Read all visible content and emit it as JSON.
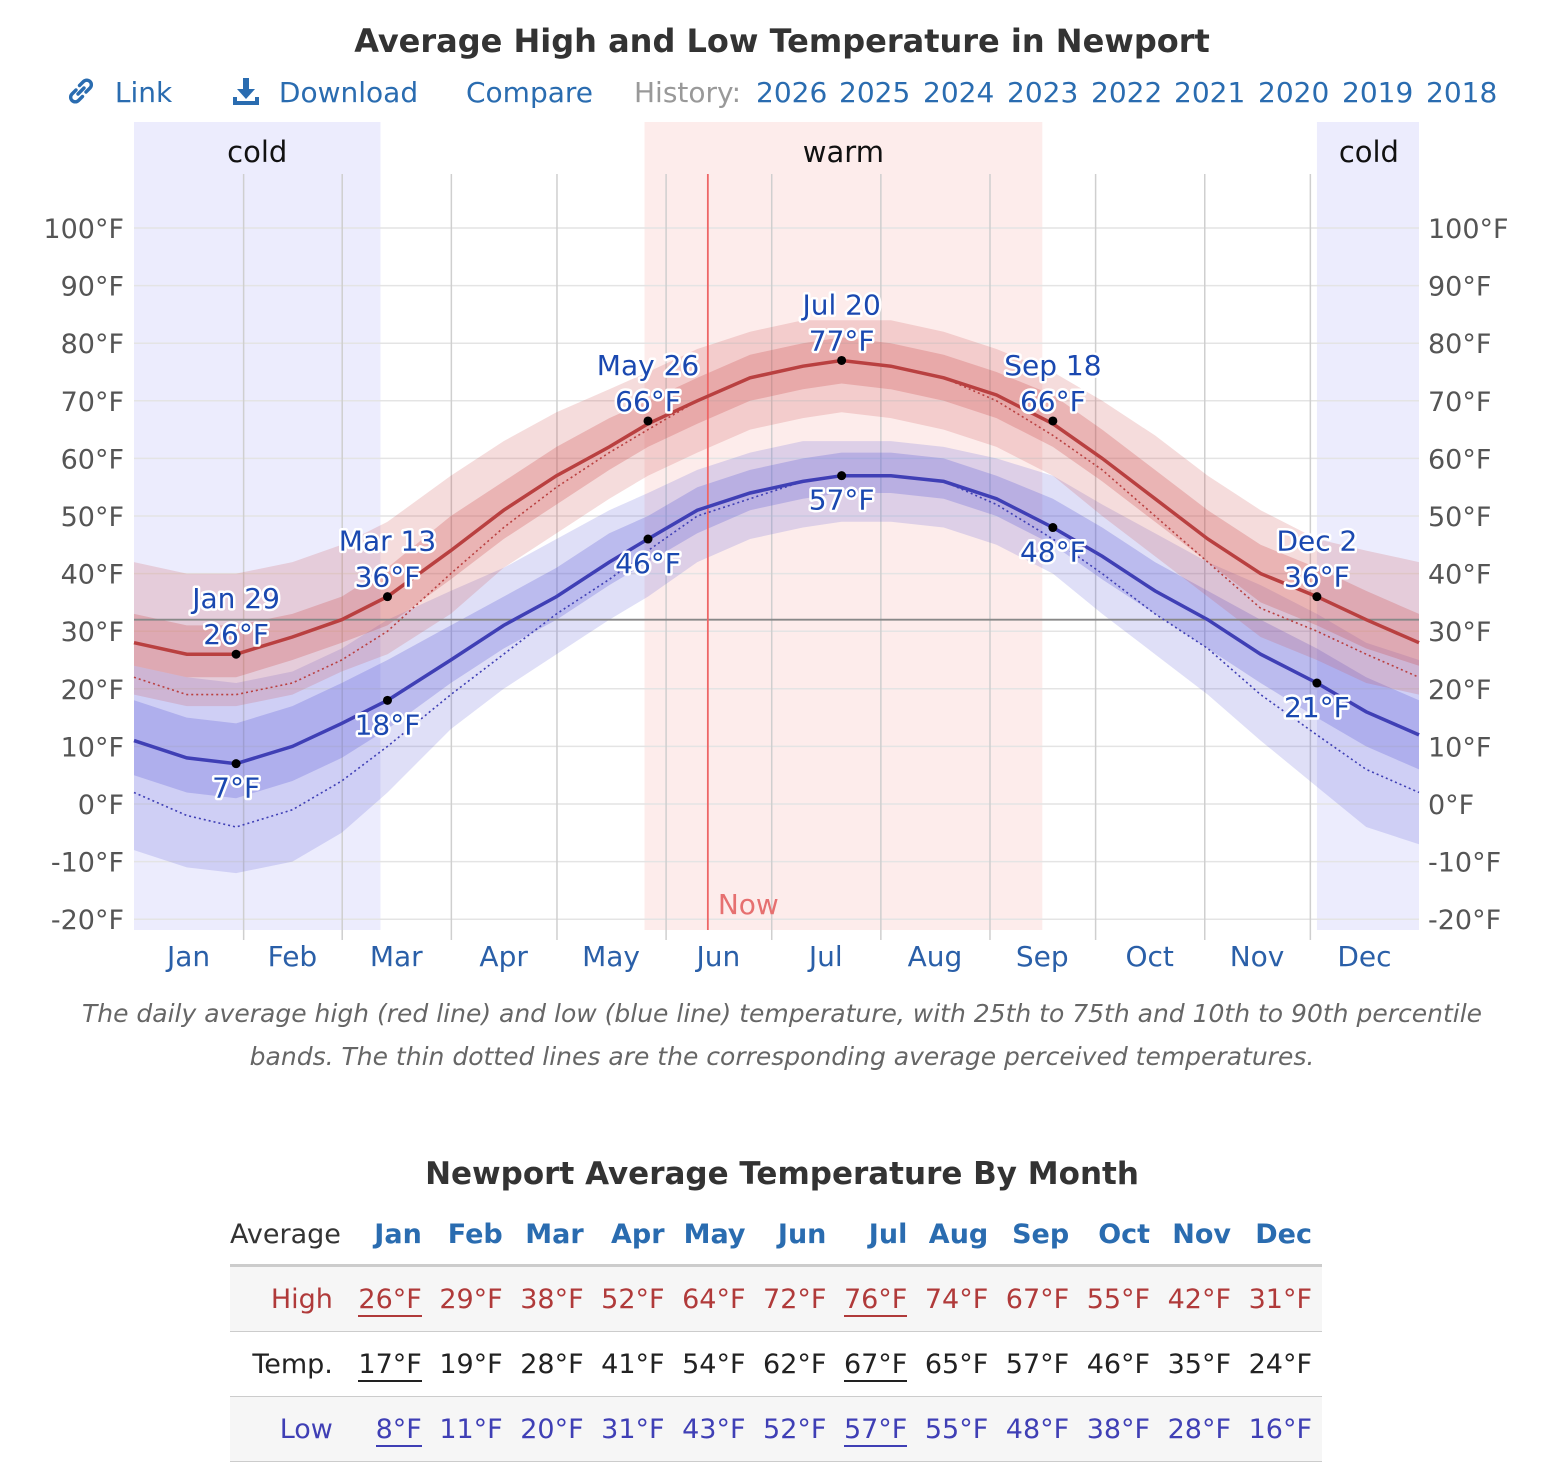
{
  "title": "Average High and Low Temperature in Newport",
  "toolbar": {
    "link_label": "Link",
    "download_label": "Download",
    "compare_label": "Compare",
    "history_label": "History:",
    "history_years": [
      "2026",
      "2025",
      "2024",
      "2023",
      "2022",
      "2021",
      "2020",
      "2019",
      "2018"
    ]
  },
  "chart_data": {
    "type": "line",
    "x_unit": "day of year",
    "months": [
      "Jan",
      "Feb",
      "Mar",
      "Apr",
      "May",
      "Jun",
      "Jul",
      "Aug",
      "Sep",
      "Oct",
      "Nov",
      "Dec"
    ],
    "yticks": [
      "100°F",
      "90°F",
      "80°F",
      "70°F",
      "60°F",
      "50°F",
      "40°F",
      "30°F",
      "20°F",
      "10°F",
      "0°F",
      "-10°F",
      "-20°F"
    ],
    "ylim": [
      -20,
      100
    ],
    "freezing_line": 32,
    "seasons": [
      {
        "label": "cold",
        "start_day": 0,
        "end_day": 70
      },
      {
        "label": "warm",
        "start_day": 145,
        "end_day": 258
      },
      {
        "label": "cold",
        "start_day": 336,
        "end_day": 365
      }
    ],
    "now": {
      "label": "Now",
      "day": 163
    },
    "series": [
      {
        "role": "high",
        "color": "#b94040",
        "x": [
          0,
          15,
          29,
          45,
          59,
          72,
          90,
          105,
          120,
          135,
          146,
          160,
          175,
          190,
          201,
          215,
          230,
          245,
          261,
          275,
          290,
          305,
          320,
          336,
          350,
          365
        ],
        "values": [
          28,
          26,
          26,
          29,
          32,
          36,
          44,
          51,
          57,
          62,
          66,
          70,
          74,
          76,
          77,
          76,
          74,
          71,
          66,
          60,
          53,
          46,
          40,
          36,
          32,
          28
        ],
        "p25": [
          24,
          22,
          22,
          25,
          28,
          31,
          39,
          46,
          52,
          58,
          62,
          66,
          70,
          72,
          73,
          72,
          70,
          67,
          62,
          56,
          49,
          42,
          35,
          31,
          27,
          24
        ],
        "p75": [
          33,
          31,
          31,
          33,
          36,
          41,
          50,
          56,
          62,
          67,
          70,
          74,
          78,
          80,
          81,
          80,
          78,
          75,
          71,
          65,
          58,
          51,
          45,
          41,
          37,
          33
        ],
        "p10": [
          19,
          17,
          17,
          19,
          23,
          26,
          33,
          41,
          47,
          53,
          57,
          61,
          65,
          67,
          68,
          67,
          65,
          62,
          57,
          50,
          43,
          36,
          29,
          25,
          21,
          19
        ],
        "p90": [
          42,
          40,
          40,
          42,
          45,
          49,
          57,
          63,
          68,
          72,
          75,
          79,
          82,
          84,
          84,
          84,
          82,
          79,
          75,
          70,
          64,
          57,
          51,
          46,
          44,
          42
        ],
        "perceived": [
          22,
          19,
          19,
          21,
          25,
          30,
          40,
          48,
          55,
          61,
          65,
          70,
          74,
          76,
          77,
          76,
          74,
          70,
          64,
          58,
          50,
          42,
          34,
          30,
          26,
          22
        ]
      },
      {
        "role": "low",
        "color": "#3f3fb5",
        "x": [
          0,
          15,
          29,
          45,
          59,
          72,
          90,
          105,
          120,
          135,
          146,
          160,
          175,
          190,
          201,
          215,
          230,
          245,
          261,
          275,
          290,
          305,
          320,
          336,
          350,
          365
        ],
        "values": [
          11,
          8,
          7,
          10,
          14,
          18,
          25,
          31,
          36,
          42,
          46,
          51,
          54,
          56,
          57,
          57,
          56,
          53,
          48,
          43,
          37,
          32,
          26,
          21,
          16,
          12
        ],
        "p25": [
          5,
          2,
          1,
          4,
          8,
          13,
          21,
          27,
          32,
          38,
          42,
          47,
          51,
          53,
          54,
          54,
          53,
          50,
          45,
          39,
          33,
          27,
          21,
          15,
          10,
          6
        ],
        "p75": [
          18,
          15,
          14,
          17,
          21,
          25,
          31,
          36,
          41,
          47,
          50,
          55,
          58,
          60,
          61,
          61,
          60,
          57,
          53,
          48,
          42,
          37,
          32,
          27,
          22,
          18
        ],
        "p10": [
          -8,
          -11,
          -12,
          -10,
          -5,
          2,
          13,
          20,
          26,
          32,
          36,
          42,
          46,
          48,
          49,
          49,
          48,
          45,
          40,
          33,
          26,
          19,
          11,
          3,
          -4,
          -7
        ],
        "p90": [
          24,
          22,
          21,
          23,
          27,
          32,
          37,
          41,
          46,
          51,
          54,
          58,
          61,
          63,
          63,
          63,
          62,
          60,
          57,
          52,
          47,
          42,
          38,
          33,
          28,
          25
        ],
        "perceived": [
          2,
          -2,
          -4,
          -1,
          4,
          10,
          19,
          26,
          33,
          39,
          44,
          50,
          53,
          56,
          57,
          57,
          56,
          52,
          46,
          40,
          33,
          27,
          19,
          12,
          6,
          2
        ]
      }
    ],
    "annotations": [
      {
        "series": "high",
        "date": "Jan 29",
        "value": "26°F",
        "day": 29,
        "y": 26,
        "pos": "above"
      },
      {
        "series": "high",
        "date": "Mar 13",
        "value": "36°F",
        "day": 72,
        "y": 36,
        "pos": "above"
      },
      {
        "series": "high",
        "date": "May 26",
        "value": "66°F",
        "day": 146,
        "y": 66.5,
        "pos": "above"
      },
      {
        "series": "high",
        "date": "Jul 20",
        "value": "77°F",
        "day": 201,
        "y": 77,
        "pos": "above"
      },
      {
        "series": "high",
        "date": "Sep 18",
        "value": "66°F",
        "day": 261,
        "y": 66.5,
        "pos": "above"
      },
      {
        "series": "high",
        "date": "Dec 2",
        "value": "36°F",
        "day": 336,
        "y": 36,
        "pos": "above"
      },
      {
        "series": "low",
        "value": "7°F",
        "day": 29,
        "y": 7,
        "pos": "below"
      },
      {
        "series": "low",
        "value": "18°F",
        "day": 72,
        "y": 18,
        "pos": "below"
      },
      {
        "series": "low",
        "value": "46°F",
        "day": 146,
        "y": 46,
        "pos": "below"
      },
      {
        "series": "low",
        "value": "57°F",
        "day": 201,
        "y": 57,
        "pos": "below"
      },
      {
        "series": "low",
        "value": "48°F",
        "day": 261,
        "y": 48,
        "pos": "below"
      },
      {
        "series": "low",
        "value": "21°F",
        "day": 336,
        "y": 21,
        "pos": "below"
      }
    ]
  },
  "caption": "The daily average high (red line) and low (blue line) temperature, with 25th to 75th and 10th to 90th percentile bands. The thin dotted lines are the corresponding average perceived temperatures.",
  "table": {
    "title": "Newport Average Temperature By Month",
    "corner": "Average",
    "months": [
      "Jan",
      "Feb",
      "Mar",
      "Apr",
      "May",
      "Jun",
      "Jul",
      "Aug",
      "Sep",
      "Oct",
      "Nov",
      "Dec"
    ],
    "rows": [
      {
        "label": "High",
        "values": [
          "26°F",
          "29°F",
          "38°F",
          "52°F",
          "64°F",
          "72°F",
          "76°F",
          "74°F",
          "67°F",
          "55°F",
          "42°F",
          "31°F"
        ]
      },
      {
        "label": "Temp.",
        "values": [
          "17°F",
          "19°F",
          "28°F",
          "41°F",
          "54°F",
          "62°F",
          "67°F",
          "65°F",
          "57°F",
          "46°F",
          "35°F",
          "24°F"
        ]
      },
      {
        "label": "Low",
        "values": [
          "8°F",
          "11°F",
          "20°F",
          "31°F",
          "43°F",
          "52°F",
          "57°F",
          "55°F",
          "48°F",
          "38°F",
          "28°F",
          "16°F"
        ]
      }
    ],
    "underlined_columns": [
      0,
      6
    ]
  }
}
